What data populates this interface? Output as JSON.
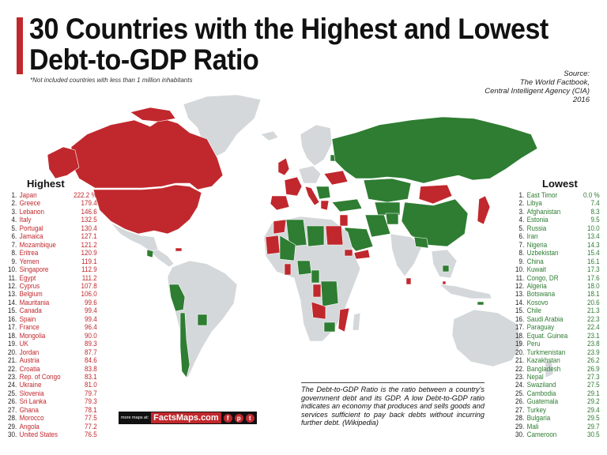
{
  "title": "30 Countries with the Highest and Lowest Debt-to-GDP Ratio",
  "note": "*Not included countries with less than 1 million inhabitants",
  "source": [
    "Source:",
    "The World Factbook,",
    "Central Intelligent Agency (CIA)",
    "2016"
  ],
  "legend_colors": {
    "highest": "#c0282d",
    "lowest": "#2e7d32",
    "other": "#d4d8da"
  },
  "highest": {
    "heading": "Highest",
    "unit": "%",
    "items": [
      {
        "rank": "1.",
        "name": "Japan",
        "value": "222.2"
      },
      {
        "rank": "2.",
        "name": "Greece",
        "value": "179.4"
      },
      {
        "rank": "3.",
        "name": "Lebanon",
        "value": "146.6"
      },
      {
        "rank": "4.",
        "name": "Italy",
        "value": "132.5"
      },
      {
        "rank": "5.",
        "name": "Portugal",
        "value": "130.4"
      },
      {
        "rank": "6.",
        "name": "Jamaica",
        "value": "127.1"
      },
      {
        "rank": "7.",
        "name": "Mozambique",
        "value": "121.2"
      },
      {
        "rank": "8.",
        "name": "Eritrea",
        "value": "120.9"
      },
      {
        "rank": "9.",
        "name": "Yemen",
        "value": "119.1"
      },
      {
        "rank": "10.",
        "name": "Singapore",
        "value": "112.9"
      },
      {
        "rank": "11.",
        "name": "Egypt",
        "value": "111.2"
      },
      {
        "rank": "12.",
        "name": "Cyprus",
        "value": "107.8"
      },
      {
        "rank": "13.",
        "name": "Belgium",
        "value": "106.0"
      },
      {
        "rank": "14.",
        "name": "Mauritania",
        "value": "99.6"
      },
      {
        "rank": "15.",
        "name": "Canada",
        "value": "99.4"
      },
      {
        "rank": "16.",
        "name": "Spain",
        "value": "99.4"
      },
      {
        "rank": "17.",
        "name": "France",
        "value": "96.4"
      },
      {
        "rank": "18.",
        "name": "Mongolia",
        "value": "90.0"
      },
      {
        "rank": "19.",
        "name": "UK",
        "value": "89.3"
      },
      {
        "rank": "20.",
        "name": "Jordan",
        "value": "87.7"
      },
      {
        "rank": "21.",
        "name": "Austria",
        "value": "84.6"
      },
      {
        "rank": "22.",
        "name": "Croatia",
        "value": "83.8"
      },
      {
        "rank": "23.",
        "name": "Rep. of Congo",
        "value": "83.1"
      },
      {
        "rank": "24.",
        "name": "Ukraine",
        "value": "81.0"
      },
      {
        "rank": "25.",
        "name": "Slovenia",
        "value": "79.7"
      },
      {
        "rank": "26.",
        "name": "Sri Lanka",
        "value": "79.3"
      },
      {
        "rank": "27.",
        "name": "Ghana",
        "value": "78.1"
      },
      {
        "rank": "28.",
        "name": "Morocco",
        "value": "77.5"
      },
      {
        "rank": "29.",
        "name": "Angola",
        "value": "77.2"
      },
      {
        "rank": "30.",
        "name": "United States",
        "value": "76.5"
      }
    ]
  },
  "lowest": {
    "heading": "Lowest",
    "unit": "%",
    "items": [
      {
        "rank": "1.",
        "name": "East Timor",
        "value": "0.0"
      },
      {
        "rank": "2.",
        "name": "Libya",
        "value": "7.4"
      },
      {
        "rank": "3.",
        "name": "Afghanistan",
        "value": "8.3"
      },
      {
        "rank": "4.",
        "name": "Estonia",
        "value": "9.5"
      },
      {
        "rank": "5.",
        "name": "Russia",
        "value": "10.0"
      },
      {
        "rank": "6.",
        "name": "Iran",
        "value": "13.4"
      },
      {
        "rank": "7.",
        "name": "Nigeria",
        "value": "14.3"
      },
      {
        "rank": "8.",
        "name": "Uzbekistan",
        "value": "15.4"
      },
      {
        "rank": "9.",
        "name": "China",
        "value": "16.1"
      },
      {
        "rank": "10.",
        "name": "Kuwait",
        "value": "17.3"
      },
      {
        "rank": "11.",
        "name": "Congo, DR",
        "value": "17.6"
      },
      {
        "rank": "12.",
        "name": "Algeria",
        "value": "18.0"
      },
      {
        "rank": "13.",
        "name": "Botswana",
        "value": "18.1"
      },
      {
        "rank": "14.",
        "name": "Kosovo",
        "value": "20.6"
      },
      {
        "rank": "15.",
        "name": "Chile",
        "value": "21.3"
      },
      {
        "rank": "16.",
        "name": "Saudi Arabia",
        "value": "22.3"
      },
      {
        "rank": "17.",
        "name": "Paraguay",
        "value": "22.4"
      },
      {
        "rank": "18.",
        "name": "Equat. Guinea",
        "value": "23.1"
      },
      {
        "rank": "19.",
        "name": "Peru",
        "value": "23.8"
      },
      {
        "rank": "20.",
        "name": "Turkmenistan",
        "value": "23.9"
      },
      {
        "rank": "21.",
        "name": "Kazakhstan",
        "value": "26.2"
      },
      {
        "rank": "22.",
        "name": "Bangladesh",
        "value": "26.9"
      },
      {
        "rank": "23.",
        "name": "Nepal",
        "value": "27.3"
      },
      {
        "rank": "24.",
        "name": "Swaziland",
        "value": "27.5"
      },
      {
        "rank": "25.",
        "name": "Cambodia",
        "value": "29.1"
      },
      {
        "rank": "26.",
        "name": "Guatemala",
        "value": "29.2"
      },
      {
        "rank": "27.",
        "name": "Turkey",
        "value": "29.4"
      },
      {
        "rank": "28.",
        "name": "Bulgaria",
        "value": "29.5"
      },
      {
        "rank": "29.",
        "name": "Mali",
        "value": "29.7"
      },
      {
        "rank": "30.",
        "name": "Cameroon",
        "value": "30.5"
      }
    ]
  },
  "definition": "The Debt-to-GDP Ratio is the ratio between a country's government debt and its GDP. A low Debt-to-GDP ratio indicates an economy that produces and sells goods and services sufficient to pay back debts without incurring further debt. (Wikipedia)",
  "logo": {
    "prefix": "more maps at:",
    "brand": "FactsMaps.com",
    "social_icons": [
      "facebook-icon",
      "pinterest-icon",
      "twitter-icon"
    ]
  }
}
